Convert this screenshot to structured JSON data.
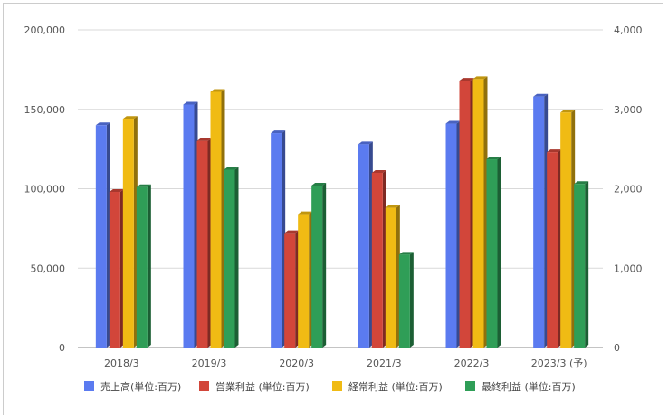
{
  "chart_data": {
    "type": "bar",
    "style": "3d",
    "categories": [
      "2018/3",
      "2019/3",
      "2020/3",
      "2021/3",
      "2022/3",
      "2023/3 (予)"
    ],
    "series": [
      {
        "name": "売上高(単位:百万)",
        "color": "#5b7bf0",
        "axis": "left",
        "values": [
          140000,
          153000,
          135000,
          128000,
          141000,
          158000
        ]
      },
      {
        "name": "営業利益 (単位:百万)",
        "color": "#d2463a",
        "axis": "right",
        "values": [
          1960,
          2600,
          1440,
          2200,
          3360,
          2460
        ]
      },
      {
        "name": "経常利益 (単位:百万)",
        "color": "#f0bb14",
        "axis": "right",
        "values": [
          2880,
          3220,
          1680,
          1760,
          3380,
          2960
        ]
      },
      {
        "name": "最終利益 (単位:百万)",
        "color": "#2f9e57",
        "axis": "right",
        "values": [
          2020,
          2240,
          2040,
          1170,
          2370,
          2060
        ]
      }
    ],
    "y_left": {
      "min": 0,
      "max": 200000,
      "ticks": [
        "0",
        "50,000",
        "100,000",
        "150,000",
        "200,000"
      ]
    },
    "y_right": {
      "min": 0,
      "max": 4000,
      "ticks": [
        "0",
        "1,000",
        "2,000",
        "3,000",
        "4,000"
      ]
    },
    "grid": true,
    "legend_position": "bottom"
  }
}
